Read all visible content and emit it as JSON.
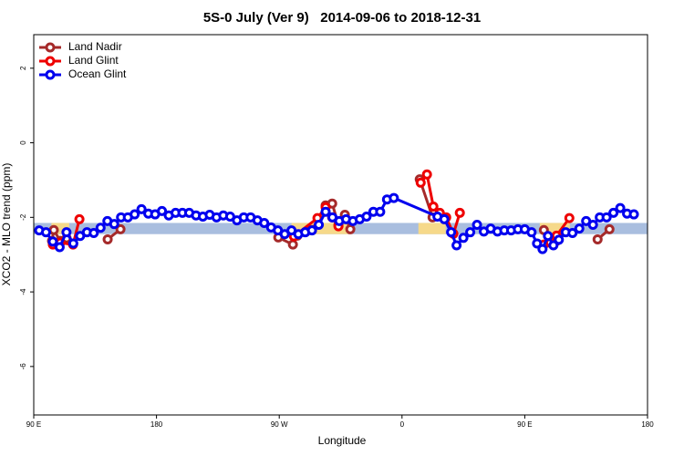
{
  "chart_data": {
    "type": "line",
    "title": "5S-0 July (Ver 9)   2014-09-06 to 2018-12-31",
    "xlabel": "Longitude",
    "ylabel": "XCO2 - MLO trend (ppm)",
    "xlim": [
      90,
      540
    ],
    "ylim": [
      -7.3,
      2.9
    ],
    "xticks": [
      {
        "value": 90,
        "label": "90 E"
      },
      180,
      {
        "value": 270,
        "label": "90 W"
      },
      {
        "value": 360,
        "label": "0"
      },
      {
        "value": 450,
        "label": "90 E"
      },
      {
        "value": 540,
        "label": "180"
      }
    ],
    "yticks": [
      2,
      0,
      -2,
      -4,
      -6
    ],
    "legend": "top-left",
    "bands": [
      {
        "color": "#a9bedf",
        "xrange": [
          90,
          540
        ],
        "yrange": [
          -2.45,
          -2.15
        ]
      },
      {
        "color": "#f6d98a",
        "xrange": [
          103,
          116
        ],
        "yrange": [
          -2.45,
          -2.15
        ]
      },
      {
        "color": "#f6d98a",
        "xrange": [
          279,
          323
        ],
        "yrange": [
          -2.45,
          -2.15
        ]
      },
      {
        "color": "#f6d98a",
        "xrange": [
          372,
          392
        ],
        "yrange": [
          -2.45,
          -2.15
        ]
      },
      {
        "color": "#f6d98a",
        "xrange": [
          461,
          483
        ],
        "yrange": [
          -2.45,
          -2.15
        ]
      }
    ],
    "series": [
      {
        "name": "Land Nadir",
        "color": "#a52a2a",
        "x": [
          103.4,
          104.7,
          109.4,
          114.1,
          null,
          144.2,
          153.6,
          null,
          269.3,
          280,
          283.3,
          289.4,
          294,
          304,
          308.8,
          313.4,
          318.1,
          322.1,
          null,
          373,
          382.4,
          null,
          464,
          473.3,
          null,
          503.4,
          512.1
        ],
        "values": [
          -2.63,
          -2.34,
          -2.63,
          -2.56,
          null,
          -2.59,
          -2.32,
          null,
          -2.54,
          -2.73,
          -2.49,
          -2.39,
          -2.34,
          -1.68,
          -1.63,
          -2.2,
          -1.93,
          -2.32,
          null,
          -0.98,
          -2.0,
          null,
          -2.34,
          -2.63,
          null,
          -2.59,
          -2.32
        ]
      },
      {
        "name": "Land Glint",
        "color": "#ee0000",
        "x": [
          104,
          109.4,
          118.8,
          123.5,
          null,
          280.7,
          298,
          304,
          308.8,
          313.4,
          null,
          373.7,
          378.3,
          383,
          387.7,
          392.4,
          397.7,
          402.4,
          null,
          464,
          468.7,
          473.3,
          482.7
        ],
        "values": [
          -2.73,
          -2.68,
          -2.73,
          -2.05,
          null,
          -2.51,
          -2.02,
          -1.73,
          -2.0,
          -2.24,
          null,
          -1.07,
          -0.85,
          -1.71,
          -1.88,
          -2.0,
          -2.44,
          -1.88,
          null,
          -2.73,
          -2.68,
          -2.49,
          -2.02
        ]
      },
      {
        "name": "Ocean Glint",
        "color": "#0000ee",
        "x": [
          94,
          99,
          104,
          109,
          114,
          119,
          124,
          129,
          134,
          139,
          144,
          149,
          154,
          159,
          164,
          169,
          174,
          179,
          184,
          189,
          194,
          199,
          204,
          209,
          214,
          219,
          224,
          229,
          234,
          239,
          244,
          249,
          254,
          259,
          264,
          269,
          274,
          279,
          284,
          289,
          294,
          299,
          304,
          309,
          314,
          319,
          324,
          329,
          334,
          339,
          344,
          349,
          354,
          386,
          391,
          396,
          400,
          405,
          410,
          415,
          420,
          425,
          430,
          435,
          440,
          445,
          450,
          455,
          459,
          463,
          467,
          471,
          475,
          480,
          485,
          490,
          495,
          500,
          505,
          510,
          515,
          520,
          525,
          530
        ],
        "values": [
          -2.35,
          -2.4,
          -2.65,
          -2.8,
          -2.4,
          -2.7,
          -2.5,
          -2.4,
          -2.42,
          -2.28,
          -2.1,
          -2.18,
          -2.0,
          -2.0,
          -1.92,
          -1.78,
          -1.9,
          -1.92,
          -1.83,
          -1.95,
          -1.88,
          -1.88,
          -1.88,
          -1.95,
          -1.98,
          -1.93,
          -2.0,
          -1.95,
          -1.98,
          -2.08,
          -2.0,
          -2.0,
          -2.08,
          -2.15,
          -2.27,
          -2.35,
          -2.45,
          -2.35,
          -2.45,
          -2.4,
          -2.35,
          -2.2,
          -1.85,
          -2.0,
          -2.1,
          -2.05,
          -2.1,
          -2.05,
          -1.98,
          -1.85,
          -1.85,
          -1.52,
          -1.48,
          -1.98,
          -2.05,
          -2.4,
          -2.75,
          -2.55,
          -2.4,
          -2.2,
          -2.38,
          -2.3,
          -2.38,
          -2.35,
          -2.35,
          -2.32,
          -2.32,
          -2.4,
          -2.7,
          -2.85,
          -2.5,
          -2.75,
          -2.6,
          -2.4,
          -2.42,
          -2.3,
          -2.1,
          -2.2,
          -2.0,
          -2.0,
          -1.88,
          -1.75,
          -1.9,
          -1.92
        ]
      }
    ]
  }
}
